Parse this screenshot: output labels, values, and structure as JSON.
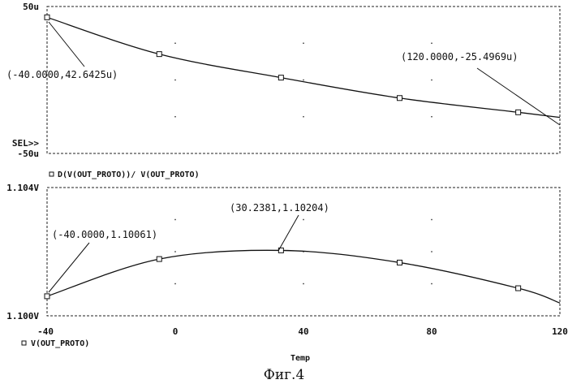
{
  "caption": "Фиг.4",
  "xlabel": "Temp",
  "sel_marker": "SEL>>",
  "chart_data": [
    {
      "type": "line",
      "ylim": [
        -50,
        50
      ],
      "xlim": [
        -40,
        120
      ],
      "ytick_labels": {
        "top": "50u",
        "bottom": "-50u"
      },
      "legend": "D(V(OUT_PROTO))/ V(OUT_PROTO)",
      "series": [
        {
          "x": [
            -40,
            -5,
            33,
            70,
            107,
            120
          ],
          "y": [
            42.6425,
            17.6,
            1.6,
            -12.3,
            -22.0,
            -25.4969
          ]
        }
      ],
      "annotations": [
        {
          "text": "(-40.0000,42.6425u)",
          "x": -40,
          "y": 42.6425
        },
        {
          "text": "(120.0000,-25.4969u)",
          "x": 120,
          "y": -25.4969
        }
      ],
      "grid": "dotted"
    },
    {
      "type": "line",
      "ylim": [
        1.1,
        1.104
      ],
      "xlim": [
        -40,
        120
      ],
      "ytick_labels": {
        "top": "1.104V",
        "bottom": "1.100V"
      },
      "xtick_labels": [
        "-40",
        "0",
        "40",
        "80",
        "120"
      ],
      "legend": "V(OUT_PROTO)",
      "series": [
        {
          "x": [
            -40,
            -5,
            33,
            70,
            107,
            120
          ],
          "y": [
            1.10061,
            1.10177,
            1.10204,
            1.10166,
            1.10086,
            1.1004
          ]
        }
      ],
      "annotations": [
        {
          "text": "(-40.0000,1.10061)",
          "x": -40,
          "y": 1.10061
        },
        {
          "text": "(30.2381,1.10204)",
          "x": 30.2381,
          "y": 1.10204
        }
      ],
      "grid": "dotted"
    }
  ]
}
